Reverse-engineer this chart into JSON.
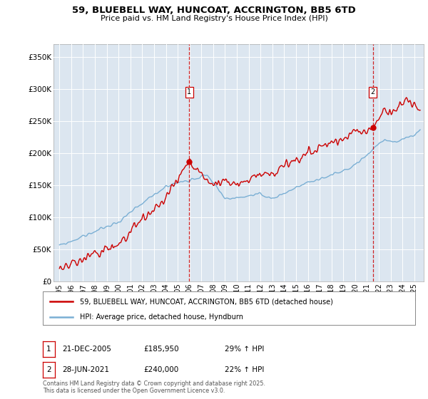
{
  "title": "59, BLUEBELL WAY, HUNCOAT, ACCRINGTON, BB5 6TD",
  "subtitle": "Price paid vs. HM Land Registry's House Price Index (HPI)",
  "background_color": "#dce6f0",
  "plot_bg_color": "#dce6f0",
  "legend_label_red": "59, BLUEBELL WAY, HUNCOAT, ACCRINGTON, BB5 6TD (detached house)",
  "legend_label_blue": "HPI: Average price, detached house, Hyndburn",
  "sale1_date": "21-DEC-2005",
  "sale1_price": "£185,950",
  "sale1_hpi": "29% ↑ HPI",
  "sale2_date": "28-JUN-2021",
  "sale2_price": "£240,000",
  "sale2_hpi": "22% ↑ HPI",
  "footnote": "Contains HM Land Registry data © Crown copyright and database right 2025.\nThis data is licensed under the Open Government Licence v3.0.",
  "yticks": [
    0,
    50000,
    100000,
    150000,
    200000,
    250000,
    300000,
    350000
  ],
  "ytick_labels": [
    "£0",
    "£50K",
    "£100K",
    "£150K",
    "£200K",
    "£250K",
    "£300K",
    "£350K"
  ],
  "xlim_start": 1994.5,
  "xlim_end": 2025.8,
  "ylim": [
    0,
    370000
  ],
  "sale1_x": 2005.97,
  "sale1_y": 185950,
  "sale2_x": 2021.49,
  "sale2_y": 240000,
  "red_color": "#cc0000",
  "blue_color": "#7aafd4",
  "vline_color": "#cc0000",
  "grid_color": "#ffffff",
  "border_color": "#aaaaaa"
}
